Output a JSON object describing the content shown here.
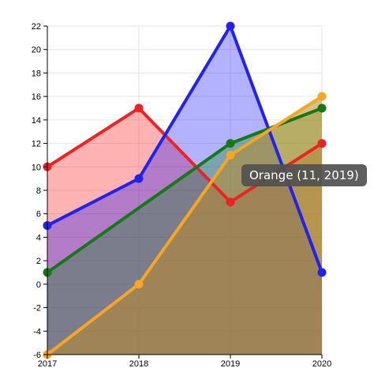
{
  "chart_data": {
    "type": "area",
    "x": [
      "2017",
      "2018",
      "2019",
      "2020"
    ],
    "ylim": [
      -6,
      22
    ],
    "yticks": [
      -6,
      -4,
      -2,
      0,
      2,
      4,
      6,
      8,
      10,
      12,
      14,
      16,
      18,
      20,
      22
    ],
    "grid": true,
    "series": [
      {
        "name": "Red",
        "values": [
          10,
          15,
          7,
          12
        ],
        "stroke": "#ee2222",
        "fill": "#ff0000",
        "fillOpacity": 0.3
      },
      {
        "name": "Blue",
        "values": [
          5,
          9,
          22,
          1
        ],
        "stroke": "#2222ee",
        "fill": "#0000ff",
        "fillOpacity": 0.3
      },
      {
        "name": "Green",
        "values": [
          1,
          6.5,
          12,
          15
        ],
        "stroke": "#157a15",
        "fill": "#008000",
        "fillOpacity": 0.3,
        "markers": [
          true,
          false,
          true,
          true
        ]
      },
      {
        "name": "Orange",
        "values": [
          -6,
          0,
          11,
          16
        ],
        "stroke": "#f5a623",
        "fill": "#b98a2a",
        "fillOpacity": 0.55
      }
    ],
    "tooltip": {
      "text": "Orange (11, 2019)",
      "series": "Orange",
      "index": 2
    }
  }
}
